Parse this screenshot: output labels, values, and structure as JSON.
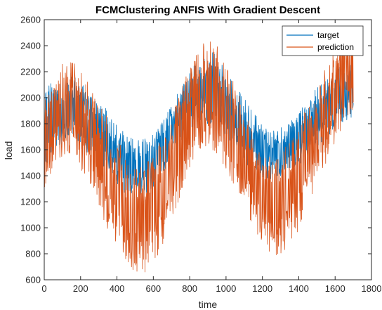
{
  "chart_data": {
    "type": "line",
    "title": "FCMClustering ANFIS With Gradient Descent",
    "xlabel": "time",
    "ylabel": "load",
    "xlim": [
      0,
      1800
    ],
    "ylim": [
      600,
      2600
    ],
    "xticks": [
      0,
      200,
      400,
      600,
      800,
      1000,
      1200,
      1400,
      1600,
      1800
    ],
    "yticks": [
      600,
      800,
      1000,
      1200,
      1400,
      1600,
      1800,
      2000,
      2200,
      2400,
      2600
    ],
    "grid": false,
    "legend_position": "top-right",
    "series": [
      {
        "name": "target",
        "color": "#0072BD",
        "envelope_x": [
          0,
          50,
          100,
          150,
          200,
          250,
          300,
          350,
          400,
          450,
          500,
          550,
          600,
          650,
          700,
          750,
          800,
          850,
          900,
          950,
          1000,
          1050,
          1100,
          1150,
          1200,
          1250,
          1300,
          1350,
          1400,
          1450,
          1500,
          1550,
          1600,
          1650,
          1700
        ],
        "envelope_upper": [
          2100,
          2120,
          2150,
          2200,
          2120,
          2050,
          1980,
          1900,
          1800,
          1720,
          1680,
          1700,
          1720,
          1820,
          1950,
          2100,
          2200,
          2300,
          2380,
          2330,
          2220,
          2100,
          2000,
          1900,
          1800,
          1750,
          1770,
          1800,
          1900,
          1980,
          2080,
          2150,
          2200,
          2280,
          2250
        ],
        "envelope_lower": [
          1420,
          1560,
          1650,
          1650,
          1600,
          1550,
          1480,
          1400,
          1330,
          1250,
          1220,
          1240,
          1300,
          1400,
          1520,
          1650,
          1750,
          1820,
          1800,
          1770,
          1700,
          1600,
          1500,
          1420,
          1380,
          1360,
          1390,
          1420,
          1480,
          1560,
          1620,
          1690,
          1740,
          1800,
          1850
        ]
      },
      {
        "name": "prediction",
        "color": "#D95319",
        "envelope_x": [
          0,
          50,
          100,
          150,
          200,
          250,
          300,
          350,
          400,
          450,
          500,
          550,
          600,
          650,
          700,
          750,
          800,
          850,
          900,
          950,
          1000,
          1050,
          1100,
          1150,
          1200,
          1250,
          1300,
          1350,
          1400,
          1450,
          1500,
          1550,
          1600,
          1650,
          1700
        ],
        "envelope_upper": [
          2050,
          2200,
          2280,
          2300,
          2200,
          2100,
          2000,
          1850,
          1700,
          1550,
          1480,
          1500,
          1550,
          1700,
          1850,
          2050,
          2250,
          2400,
          2460,
          2400,
          2250,
          2100,
          1900,
          1750,
          1620,
          1550,
          1600,
          1680,
          1800,
          1950,
          2100,
          2250,
          2400,
          2560,
          2500
        ],
        "envelope_lower": [
          1300,
          1450,
          1550,
          1520,
          1450,
          1320,
          1150,
          980,
          800,
          700,
          650,
          650,
          720,
          850,
          1050,
          1250,
          1450,
          1600,
          1620,
          1550,
          1450,
          1300,
          1150,
          1000,
          880,
          790,
          780,
          860,
          980,
          1150,
          1350,
          1500,
          1650,
          1800,
          1900
        ]
      }
    ]
  }
}
